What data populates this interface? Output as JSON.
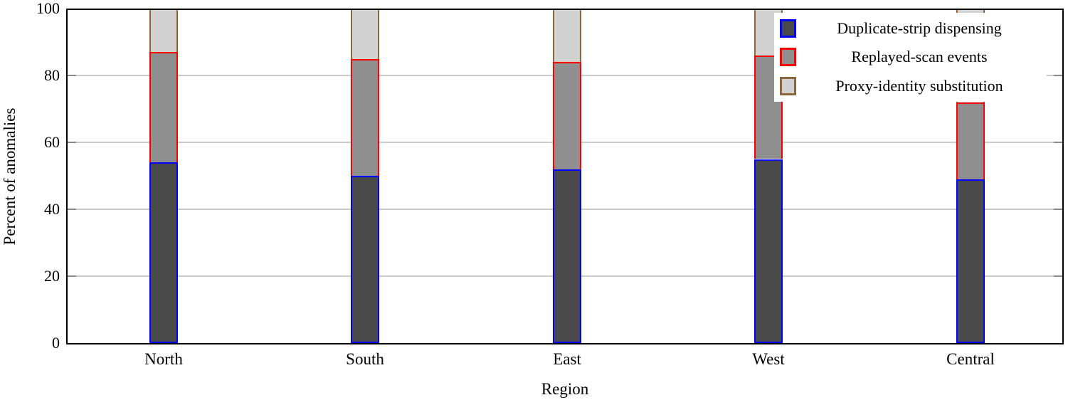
{
  "chart_data": {
    "type": "bar",
    "stacked": true,
    "xlabel": "Region",
    "ylabel": "Percent of anomalies",
    "categories": [
      "North",
      "South",
      "East",
      "West",
      "Central"
    ],
    "series": [
      {
        "name": "Duplicate-strip dispensing",
        "fill": "#4a4a4a",
        "edge": "#0000ff",
        "values": [
          54,
          50,
          52,
          55,
          49
        ]
      },
      {
        "name": "Replayed-scan events",
        "fill": "#8f8f8f",
        "edge": "#ff0000",
        "values": [
          33,
          35,
          32,
          31,
          23
        ]
      },
      {
        "name": "Proxy-identity substitution",
        "fill": "#d2d2d2",
        "edge": "#8a683c",
        "values": [
          13,
          15,
          16,
          14,
          28
        ]
      }
    ],
    "ylim": [
      0,
      100
    ],
    "yticks": [
      0,
      20,
      40,
      60,
      80,
      100
    ],
    "grid": "horizontal",
    "legend_position": "top-right",
    "colors": {
      "gridline": "#cacaca",
      "spine": "#000000",
      "tick_mark": "#8a8a8a",
      "legend_background": "#ffffff",
      "text": "#000000"
    }
  }
}
